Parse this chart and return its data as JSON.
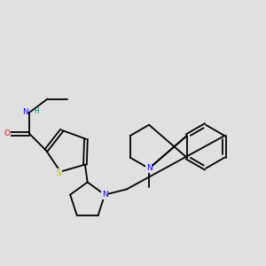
{
  "background_color": "#e0e0e0",
  "atom_colors": {
    "C": "#000000",
    "N": "#0000ff",
    "O": "#ff0000",
    "S": "#b8b800",
    "H": "#008080"
  },
  "figsize": [
    3.0,
    3.0
  ],
  "dpi": 100
}
